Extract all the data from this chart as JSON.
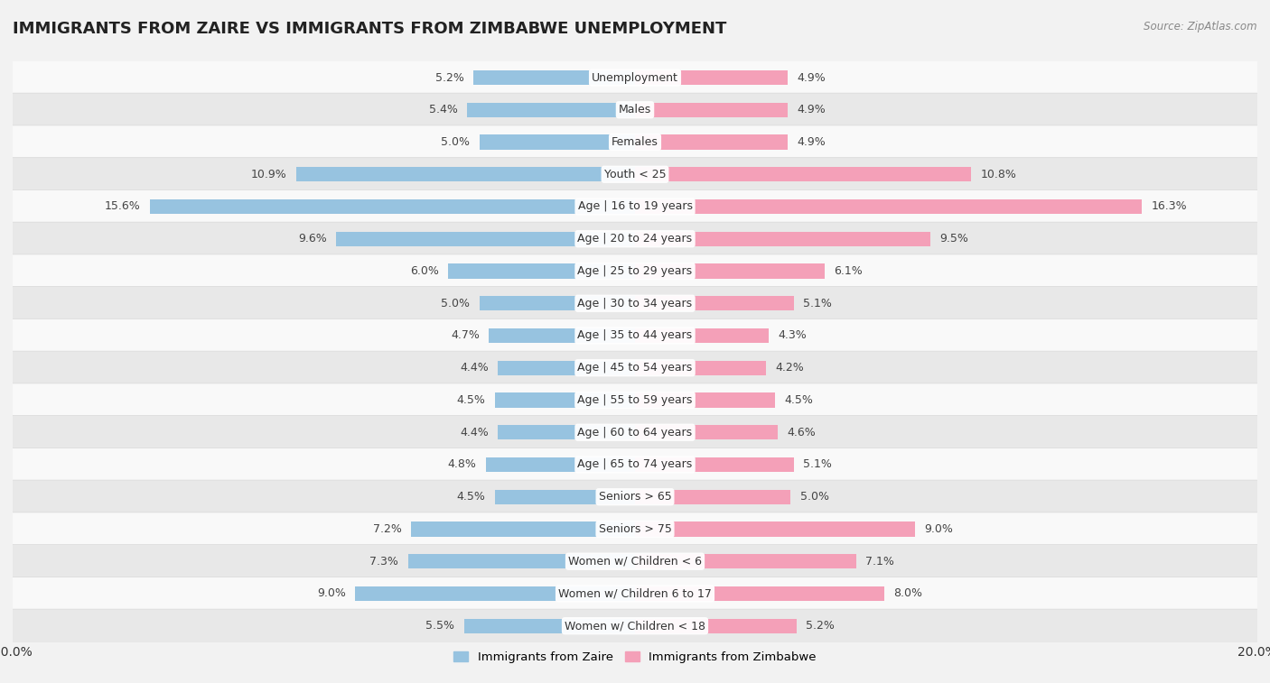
{
  "title": "IMMIGRANTS FROM ZAIRE VS IMMIGRANTS FROM ZIMBABWE UNEMPLOYMENT",
  "source": "Source: ZipAtlas.com",
  "categories": [
    "Unemployment",
    "Males",
    "Females",
    "Youth < 25",
    "Age | 16 to 19 years",
    "Age | 20 to 24 years",
    "Age | 25 to 29 years",
    "Age | 30 to 34 years",
    "Age | 35 to 44 years",
    "Age | 45 to 54 years",
    "Age | 55 to 59 years",
    "Age | 60 to 64 years",
    "Age | 65 to 74 years",
    "Seniors > 65",
    "Seniors > 75",
    "Women w/ Children < 6",
    "Women w/ Children 6 to 17",
    "Women w/ Children < 18"
  ],
  "zaire_values": [
    5.2,
    5.4,
    5.0,
    10.9,
    15.6,
    9.6,
    6.0,
    5.0,
    4.7,
    4.4,
    4.5,
    4.4,
    4.8,
    4.5,
    7.2,
    7.3,
    9.0,
    5.5
  ],
  "zimbabwe_values": [
    4.9,
    4.9,
    4.9,
    10.8,
    16.3,
    9.5,
    6.1,
    5.1,
    4.3,
    4.2,
    4.5,
    4.6,
    5.1,
    5.0,
    9.0,
    7.1,
    8.0,
    5.2
  ],
  "zaire_color": "#97c3e0",
  "zimbabwe_color": "#f4a0b8",
  "background_color": "#f2f2f2",
  "row_color_light": "#f9f9f9",
  "row_color_dark": "#e8e8e8",
  "row_border_color": "#d8d8d8",
  "xlim": 20.0,
  "bar_height": 0.45,
  "label_fontsize": 9.0,
  "title_fontsize": 13,
  "legend_fontsize": 9.5
}
